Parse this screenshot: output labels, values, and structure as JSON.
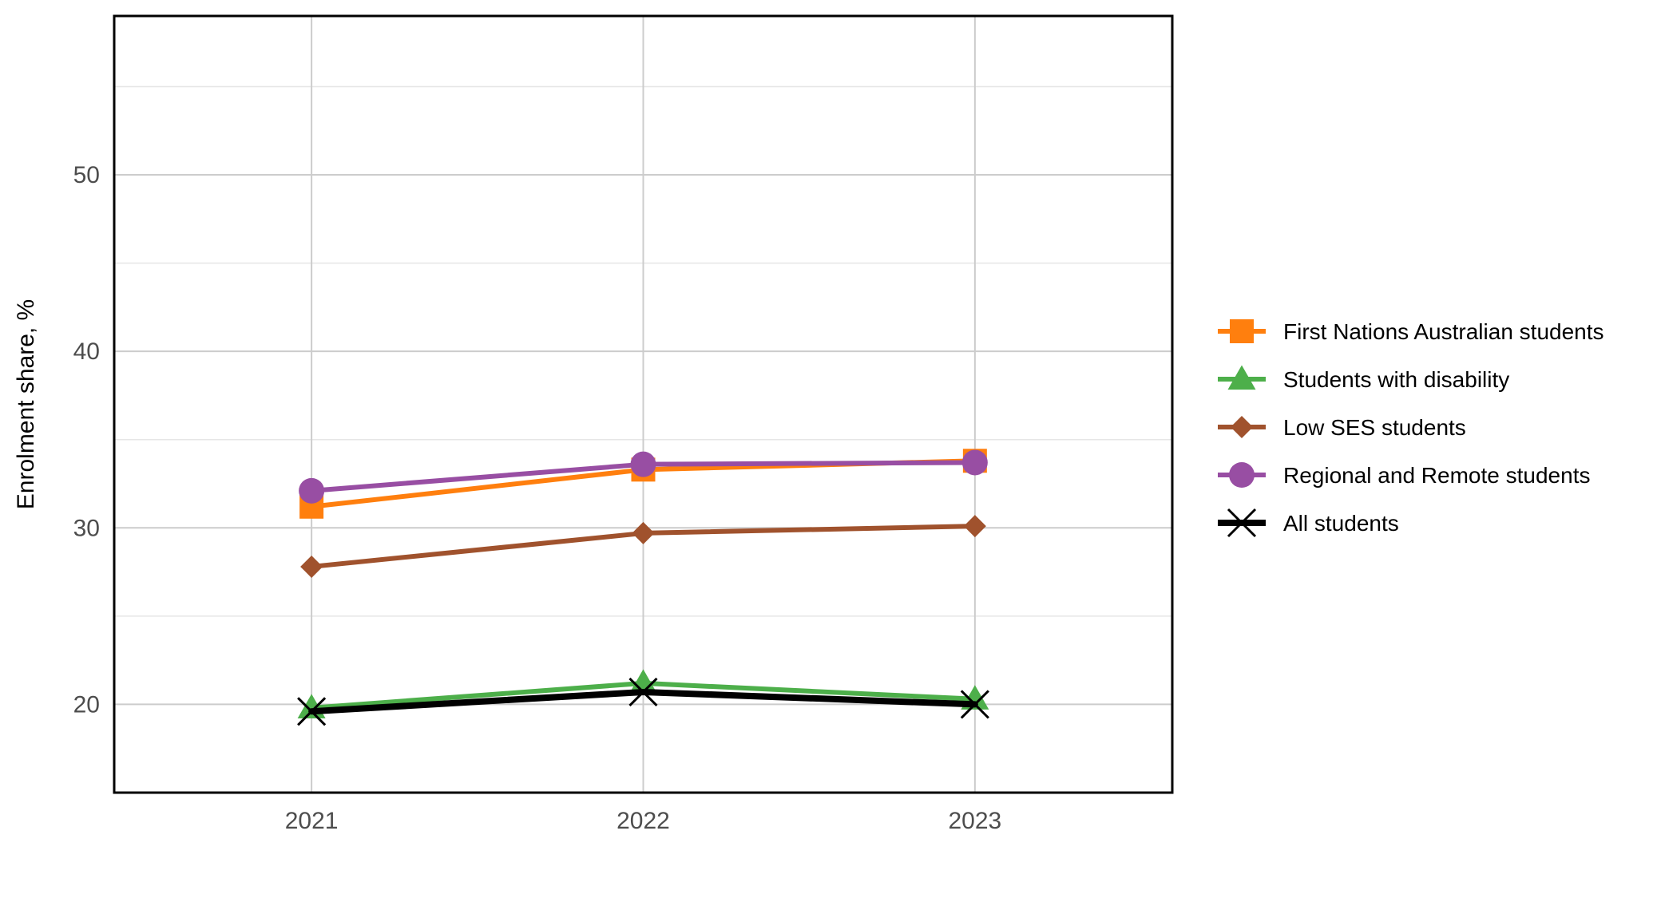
{
  "chart_data": {
    "type": "line",
    "title": "",
    "xlabel": "",
    "ylabel": "Enrolment share, %",
    "x": [
      "2021",
      "2022",
      "2023"
    ],
    "ylim": [
      15,
      59
    ],
    "yticks": [
      20,
      30,
      40,
      50
    ],
    "grid": true,
    "legend_position": "right",
    "series": [
      {
        "name": "First Nations Australian students",
        "values": [
          31.2,
          33.3,
          33.8
        ],
        "color": "#FF7F0E",
        "marker": "square"
      },
      {
        "name": "Students with disability",
        "values": [
          19.8,
          21.2,
          20.3
        ],
        "color": "#4DAF4A",
        "marker": "triangle"
      },
      {
        "name": "Low SES students",
        "values": [
          27.8,
          29.7,
          30.1
        ],
        "color": "#A0522D",
        "marker": "diamond"
      },
      {
        "name": "Regional and Remote students",
        "values": [
          32.1,
          33.6,
          33.7
        ],
        "color": "#984EA3",
        "marker": "circle"
      },
      {
        "name": "All students",
        "values": [
          19.6,
          20.7,
          20.0
        ],
        "color": "#000000",
        "marker": "x"
      }
    ]
  }
}
